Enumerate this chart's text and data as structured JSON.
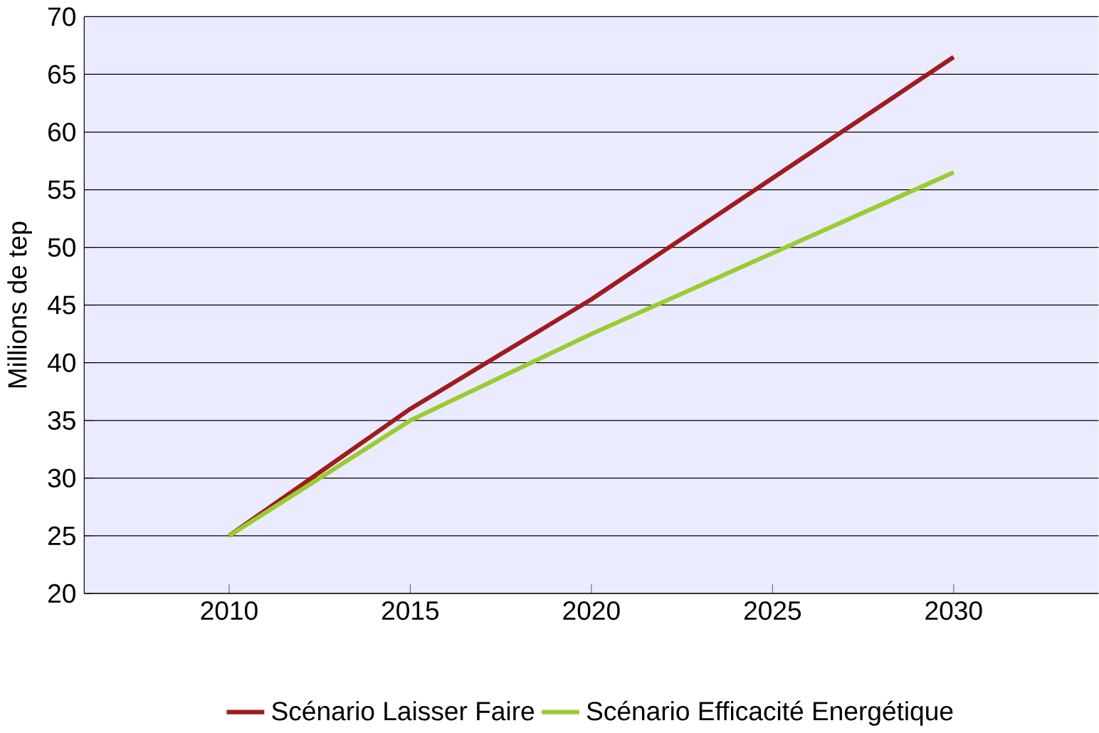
{
  "chart_data": {
    "type": "line",
    "ylabel": "Millions de tep",
    "x": [
      2010,
      2015,
      2020,
      2025,
      2030
    ],
    "series": [
      {
        "name": "Scénario Laisser Faire",
        "color": "#a01c1c",
        "values": [
          25,
          36,
          45.5,
          56,
          66.5
        ]
      },
      {
        "name": "Scénario Efficacité Energétique",
        "color": "#99cc33",
        "values": [
          25,
          35,
          42.5,
          49.5,
          56.5
        ]
      }
    ],
    "xlim": [
      2006,
      2034
    ],
    "xticks": [
      2010,
      2015,
      2020,
      2025,
      2030
    ],
    "ylim": [
      20,
      70
    ],
    "yticks": [
      20,
      25,
      30,
      35,
      40,
      45,
      50,
      55,
      60,
      65,
      70
    ],
    "grid": "y",
    "legend": "bottom",
    "line_style": "solid",
    "marker": "none"
  }
}
